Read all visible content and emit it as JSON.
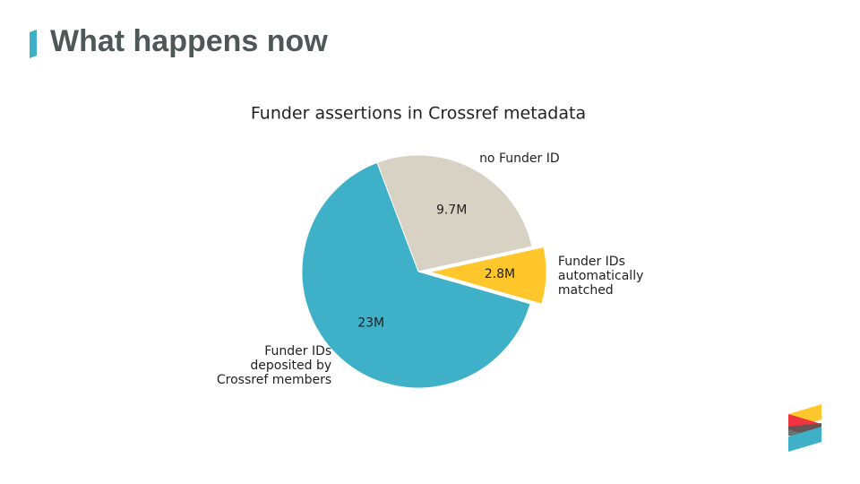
{
  "header": {
    "title": "What happens now"
  },
  "chart_data": {
    "type": "pie",
    "title": "Funder assertions in Crossref metadata",
    "categories": [
      "Funder IDs\nautomatically\nmatched",
      "no Funder ID",
      "Funder IDs\ndeposited by\nCrossref members"
    ],
    "values": [
      2.8,
      9.7,
      23
    ],
    "value_labels": [
      "2.8M",
      "9.7M",
      "23M"
    ],
    "colors": [
      "#ffc72c",
      "#d8d2c4",
      "#3eb1c8"
    ]
  }
}
